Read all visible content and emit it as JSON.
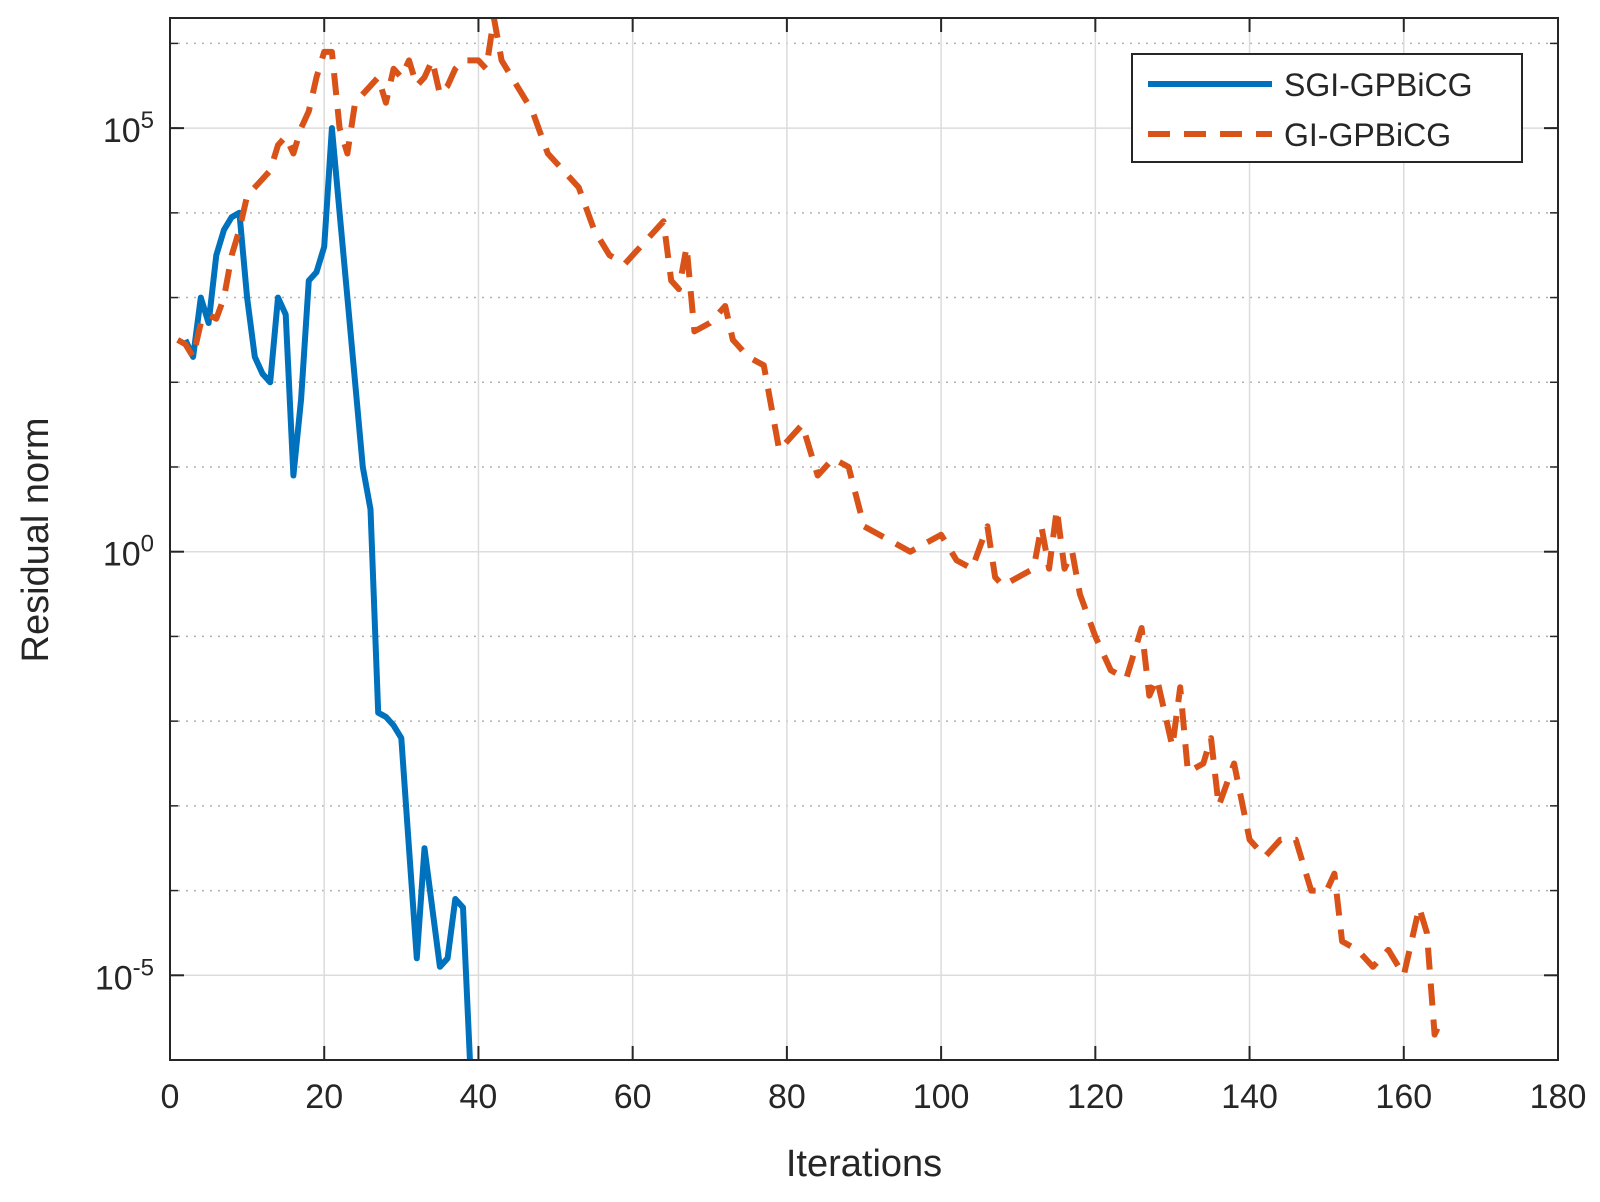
{
  "chart_data": {
    "type": "line",
    "title": "",
    "xlabel": "Iterations",
    "ylabel": "Residual norm",
    "xlim": [
      0,
      180
    ],
    "ylim_log10": [
      -6,
      6.3
    ],
    "yscale": "log",
    "grid": true,
    "minor_grid": true,
    "x_ticks": [
      0,
      20,
      40,
      60,
      80,
      100,
      120,
      140,
      160,
      180
    ],
    "x_tick_labels": [
      "0",
      "20",
      "40",
      "60",
      "80",
      "100",
      "120",
      "140",
      "160",
      "180"
    ],
    "y_ticks": [
      {
        "base": "10",
        "exp": "5",
        "log10": 5
      },
      {
        "base": "10",
        "exp": "0",
        "log10": 0
      },
      {
        "base": "10",
        "exp": "-5",
        "log10": -5
      }
    ],
    "legend_position": "top-right",
    "series": [
      {
        "name": "SGI-GPBiCG",
        "color": "#0072BD",
        "style": "solid",
        "x": [
          2,
          3,
          4,
          5,
          6,
          7,
          8,
          9,
          10,
          11,
          12,
          13,
          14,
          15,
          16,
          17,
          18,
          19,
          20,
          21,
          22,
          23,
          24,
          25,
          26,
          27,
          28,
          29,
          30,
          31,
          32,
          33,
          34,
          35,
          36,
          37,
          38,
          39
        ],
        "log10_values": [
          2.5,
          2.3,
          3.0,
          2.7,
          3.5,
          3.8,
          3.95,
          4.0,
          3.0,
          2.3,
          2.1,
          2.0,
          3.0,
          2.8,
          0.9,
          1.8,
          3.2,
          3.3,
          3.6,
          5.0,
          4.0,
          3.0,
          2.0,
          1.0,
          0.5,
          -1.9,
          -1.95,
          -2.05,
          -2.2,
          -3.5,
          -4.8,
          -3.5,
          -4.2,
          -4.9,
          -4.8,
          -4.1,
          -4.2,
          -6.2
        ]
      },
      {
        "name": "GI-GPBiCG",
        "color": "#D95319",
        "style": "dashed",
        "x": [
          1,
          2,
          3,
          4,
          5,
          6,
          7,
          8,
          9,
          10,
          11,
          12,
          13,
          14,
          15,
          16,
          17,
          18,
          19,
          20,
          21,
          22,
          23,
          24,
          25,
          26,
          27,
          28,
          29,
          30,
          31,
          32,
          33,
          34,
          35,
          36,
          37,
          38,
          39,
          40,
          41,
          42,
          43,
          45,
          47,
          49,
          51,
          53,
          55,
          57,
          59,
          60,
          62,
          64,
          65,
          66,
          67,
          68,
          70,
          72,
          73,
          75,
          77,
          79,
          80,
          82,
          84,
          86,
          88,
          90,
          92,
          94,
          96,
          98,
          100,
          102,
          104,
          106,
          107,
          108,
          110,
          112,
          113,
          114,
          115,
          116,
          117,
          118,
          120,
          122,
          124,
          126,
          127,
          128,
          130,
          131,
          132,
          134,
          135,
          136,
          138,
          140,
          142,
          144,
          146,
          148,
          150,
          151,
          152,
          154,
          156,
          158,
          160,
          162,
          163,
          164,
          165
        ],
        "log10_values": [
          2.5,
          2.45,
          2.3,
          2.7,
          2.8,
          2.75,
          3.0,
          3.5,
          3.8,
          4.2,
          4.3,
          4.4,
          4.5,
          4.8,
          4.9,
          4.7,
          5.0,
          5.2,
          5.6,
          5.9,
          5.9,
          5.0,
          4.7,
          5.3,
          5.4,
          5.5,
          5.6,
          5.3,
          5.7,
          5.6,
          5.8,
          5.5,
          5.6,
          5.8,
          5.4,
          5.5,
          5.7,
          5.8,
          5.8,
          5.8,
          5.7,
          6.3,
          5.8,
          5.5,
          5.2,
          4.7,
          4.5,
          4.3,
          3.8,
          3.5,
          3.4,
          3.5,
          3.7,
          3.9,
          3.2,
          3.1,
          3.6,
          2.6,
          2.7,
          2.9,
          2.5,
          2.3,
          2.2,
          1.2,
          1.3,
          1.5,
          0.9,
          1.1,
          1.0,
          0.3,
          0.2,
          0.1,
          0.0,
          0.1,
          0.2,
          -0.1,
          -0.2,
          0.3,
          -0.3,
          -0.4,
          -0.3,
          -0.2,
          0.3,
          -0.2,
          0.5,
          -0.2,
          0.0,
          -0.5,
          -1.0,
          -1.4,
          -1.5,
          -0.9,
          -1.7,
          -1.5,
          -2.3,
          -1.6,
          -2.6,
          -2.5,
          -2.2,
          -3.0,
          -2.5,
          -3.4,
          -3.6,
          -3.4,
          -3.4,
          -4.0,
          -4.0,
          -3.8,
          -4.6,
          -4.7,
          -4.9,
          -4.7,
          -5.0,
          -4.2,
          -4.5,
          -5.7,
          -5.5
        ]
      }
    ]
  }
}
